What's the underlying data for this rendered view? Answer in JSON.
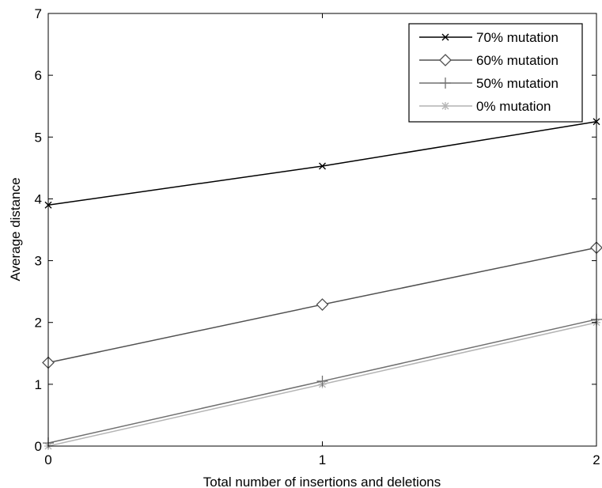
{
  "chart_data": {
    "type": "line",
    "title": "",
    "xlabel": "Total number of insertions and deletions",
    "ylabel": "Average distance",
    "x": [
      0,
      1,
      2
    ],
    "xlim": [
      0,
      2
    ],
    "ylim": [
      0,
      7
    ],
    "x_ticks": [
      "0",
      "1",
      "2"
    ],
    "y_ticks": [
      "0",
      "1",
      "2",
      "3",
      "4",
      "5",
      "6",
      "7"
    ],
    "grid": false,
    "legend_position": "top-right",
    "series": [
      {
        "name": "70% mutation",
        "values": [
          3.9,
          4.53,
          5.25
        ],
        "color": "#000000",
        "marker": "x"
      },
      {
        "name": "60% mutation",
        "values": [
          1.35,
          2.29,
          3.21
        ],
        "color": "#505050",
        "marker": "diamond"
      },
      {
        "name": "50% mutation",
        "values": [
          0.05,
          1.05,
          2.05
        ],
        "color": "#707070",
        "marker": "plus"
      },
      {
        "name": "0% mutation",
        "values": [
          0.0,
          1.0,
          2.0
        ],
        "color": "#b4b4b4",
        "marker": "star"
      }
    ]
  }
}
